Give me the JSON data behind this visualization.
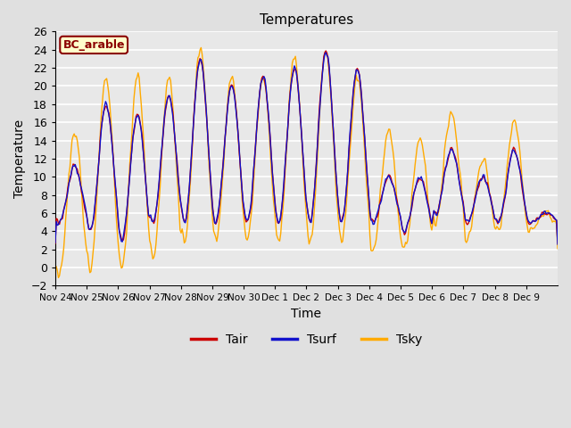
{
  "title": "Temperatures",
  "xlabel": "Time",
  "ylabel": "Temperature",
  "legend_label": "BC_arable",
  "series_labels": [
    "Tair",
    "Tsurf",
    "Tsky"
  ],
  "series_colors": [
    "#cc0000",
    "#1111cc",
    "#ffaa00"
  ],
  "ylim": [
    -2,
    26
  ],
  "yticks": [
    -2,
    0,
    2,
    4,
    6,
    8,
    10,
    12,
    14,
    16,
    18,
    20,
    22,
    24,
    26
  ],
  "n_days": 16,
  "n_points": 480,
  "x_tick_labels": [
    "Nov 24",
    "Nov 25",
    "Nov 26",
    "Nov 27",
    "Nov 28",
    "Nov 29",
    "Nov 30",
    "Dec 1",
    "Dec 2",
    "Dec 3",
    "Dec 4",
    "Dec 5",
    "Dec 6",
    "Dec 7",
    "Dec 8",
    "Dec 9"
  ],
  "x_tick_locs": [
    0,
    1,
    2,
    3,
    4,
    5,
    6,
    7,
    8,
    9,
    10,
    11,
    12,
    13,
    14,
    15
  ],
  "bg_color": "#e0e0e0",
  "plot_bg_color": "#e8e8e8",
  "line_width": 1.0,
  "label_box_facecolor": "#ffffcc",
  "label_box_edgecolor": "#8b0000",
  "label_text_color": "#8b0000"
}
